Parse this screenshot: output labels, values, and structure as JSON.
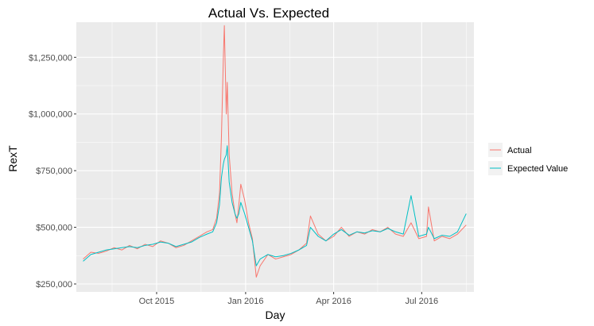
{
  "chart_data": {
    "type": "line",
    "title": "Actual Vs. Expected",
    "xlabel": "Day",
    "ylabel": "RexT",
    "x_start": "2015-07-17",
    "x_end": "2016-08-16",
    "xlim": [
      "2015-07-10",
      "2016-08-24"
    ],
    "ylim": [
      215000,
      1405000
    ],
    "x_ticks": [
      {
        "date": "2015-10-01",
        "label": "Oct 2015"
      },
      {
        "date": "2016-01-01",
        "label": "Jan 2016"
      },
      {
        "date": "2016-04-01",
        "label": "Apr 2016"
      },
      {
        "date": "2016-07-01",
        "label": "Jul 2016"
      }
    ],
    "y_ticks": [
      {
        "value": 250000,
        "label": "$250,000"
      },
      {
        "value": 500000,
        "label": "$500,000"
      },
      {
        "value": 750000,
        "label": "$750,000"
      },
      {
        "value": 1000000,
        "label": "$1,000,000"
      },
      {
        "value": 1250000,
        "label": "$1,250,000"
      }
    ],
    "grid": true,
    "legend_position": "right",
    "series": [
      {
        "name": "Actual",
        "color": "#F8766D",
        "points": [
          [
            "2015-07-17",
            360000
          ],
          [
            "2015-07-25",
            390000
          ],
          [
            "2015-08-02",
            385000
          ],
          [
            "2015-08-10",
            395000
          ],
          [
            "2015-08-18",
            410000
          ],
          [
            "2015-08-26",
            400000
          ],
          [
            "2015-09-03",
            420000
          ],
          [
            "2015-09-11",
            405000
          ],
          [
            "2015-09-19",
            425000
          ],
          [
            "2015-09-27",
            415000
          ],
          [
            "2015-10-05",
            440000
          ],
          [
            "2015-10-13",
            430000
          ],
          [
            "2015-10-21",
            410000
          ],
          [
            "2015-10-29",
            420000
          ],
          [
            "2015-11-06",
            440000
          ],
          [
            "2015-11-14",
            460000
          ],
          [
            "2015-11-22",
            480000
          ],
          [
            "2015-11-28",
            490000
          ],
          [
            "2015-12-02",
            540000
          ],
          [
            "2015-12-05",
            650000
          ],
          [
            "2015-12-07",
            900000
          ],
          [
            "2015-12-09",
            1250000
          ],
          [
            "2015-12-10",
            1390000
          ],
          [
            "2015-12-12",
            1000000
          ],
          [
            "2015-12-13",
            1140000
          ],
          [
            "2015-12-15",
            820000
          ],
          [
            "2015-12-18",
            650000
          ],
          [
            "2015-12-21",
            560000
          ],
          [
            "2015-12-23",
            520000
          ],
          [
            "2015-12-25",
            600000
          ],
          [
            "2015-12-27",
            690000
          ],
          [
            "2015-12-31",
            620000
          ],
          [
            "2016-01-04",
            520000
          ],
          [
            "2016-01-08",
            450000
          ],
          [
            "2016-01-12",
            280000
          ],
          [
            "2016-01-16",
            330000
          ],
          [
            "2016-01-24",
            380000
          ],
          [
            "2016-02-01",
            360000
          ],
          [
            "2016-02-09",
            370000
          ],
          [
            "2016-02-17",
            380000
          ],
          [
            "2016-02-25",
            400000
          ],
          [
            "2016-03-04",
            430000
          ],
          [
            "2016-03-08",
            550000
          ],
          [
            "2016-03-16",
            470000
          ],
          [
            "2016-03-24",
            440000
          ],
          [
            "2016-04-01",
            460000
          ],
          [
            "2016-04-09",
            500000
          ],
          [
            "2016-04-17",
            460000
          ],
          [
            "2016-04-25",
            480000
          ],
          [
            "2016-05-03",
            470000
          ],
          [
            "2016-05-11",
            490000
          ],
          [
            "2016-05-19",
            480000
          ],
          [
            "2016-05-27",
            500000
          ],
          [
            "2016-06-04",
            470000
          ],
          [
            "2016-06-12",
            460000
          ],
          [
            "2016-06-20",
            520000
          ],
          [
            "2016-06-28",
            450000
          ],
          [
            "2016-07-06",
            460000
          ],
          [
            "2016-07-08",
            590000
          ],
          [
            "2016-07-14",
            440000
          ],
          [
            "2016-07-22",
            460000
          ],
          [
            "2016-07-30",
            450000
          ],
          [
            "2016-08-07",
            470000
          ],
          [
            "2016-08-16",
            510000
          ]
        ]
      },
      {
        "name": "Expected Value",
        "color": "#00BFC4",
        "points": [
          [
            "2015-07-17",
            350000
          ],
          [
            "2015-07-25",
            380000
          ],
          [
            "2015-08-02",
            390000
          ],
          [
            "2015-08-10",
            400000
          ],
          [
            "2015-08-18",
            405000
          ],
          [
            "2015-08-26",
            410000
          ],
          [
            "2015-09-03",
            415000
          ],
          [
            "2015-09-11",
            410000
          ],
          [
            "2015-09-19",
            420000
          ],
          [
            "2015-09-27",
            425000
          ],
          [
            "2015-10-05",
            435000
          ],
          [
            "2015-10-13",
            430000
          ],
          [
            "2015-10-21",
            415000
          ],
          [
            "2015-10-29",
            425000
          ],
          [
            "2015-11-06",
            435000
          ],
          [
            "2015-11-14",
            455000
          ],
          [
            "2015-11-22",
            470000
          ],
          [
            "2015-11-28",
            480000
          ],
          [
            "2015-12-02",
            520000
          ],
          [
            "2015-12-05",
            600000
          ],
          [
            "2015-12-07",
            720000
          ],
          [
            "2015-12-09",
            780000
          ],
          [
            "2015-12-10",
            800000
          ],
          [
            "2015-12-12",
            820000
          ],
          [
            "2015-12-13",
            860000
          ],
          [
            "2015-12-15",
            700000
          ],
          [
            "2015-12-18",
            610000
          ],
          [
            "2015-12-21",
            560000
          ],
          [
            "2015-12-23",
            540000
          ],
          [
            "2015-12-25",
            560000
          ],
          [
            "2015-12-27",
            610000
          ],
          [
            "2015-12-31",
            560000
          ],
          [
            "2016-01-04",
            500000
          ],
          [
            "2016-01-08",
            440000
          ],
          [
            "2016-01-12",
            330000
          ],
          [
            "2016-01-16",
            360000
          ],
          [
            "2016-01-24",
            380000
          ],
          [
            "2016-02-01",
            370000
          ],
          [
            "2016-02-09",
            375000
          ],
          [
            "2016-02-17",
            385000
          ],
          [
            "2016-02-25",
            400000
          ],
          [
            "2016-03-04",
            420000
          ],
          [
            "2016-03-08",
            500000
          ],
          [
            "2016-03-16",
            460000
          ],
          [
            "2016-03-24",
            440000
          ],
          [
            "2016-04-01",
            470000
          ],
          [
            "2016-04-09",
            490000
          ],
          [
            "2016-04-17",
            465000
          ],
          [
            "2016-04-25",
            480000
          ],
          [
            "2016-05-03",
            475000
          ],
          [
            "2016-05-11",
            485000
          ],
          [
            "2016-05-19",
            480000
          ],
          [
            "2016-05-27",
            495000
          ],
          [
            "2016-06-04",
            480000
          ],
          [
            "2016-06-12",
            470000
          ],
          [
            "2016-06-20",
            640000
          ],
          [
            "2016-06-28",
            460000
          ],
          [
            "2016-07-06",
            470000
          ],
          [
            "2016-07-08",
            500000
          ],
          [
            "2016-07-14",
            450000
          ],
          [
            "2016-07-22",
            465000
          ],
          [
            "2016-07-30",
            460000
          ],
          [
            "2016-08-07",
            480000
          ],
          [
            "2016-08-16",
            560000
          ]
        ]
      }
    ]
  }
}
